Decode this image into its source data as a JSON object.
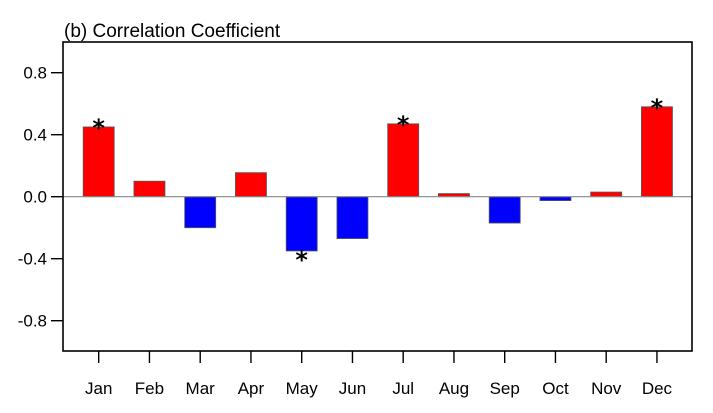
{
  "chart_data": {
    "type": "bar",
    "title": "(b) Correlation Coefficient",
    "xlabel": "",
    "ylabel": "",
    "categories": [
      "Jan",
      "Feb",
      "Mar",
      "Apr",
      "May",
      "Jun",
      "Jul",
      "Aug",
      "Sep",
      "Oct",
      "Nov",
      "Dec"
    ],
    "values": [
      0.45,
      0.1,
      -0.2,
      0.155,
      -0.35,
      -0.27,
      0.47,
      0.02,
      -0.17,
      -0.025,
      0.03,
      0.58
    ],
    "significant": [
      true,
      false,
      false,
      false,
      true,
      false,
      true,
      false,
      false,
      false,
      false,
      true
    ],
    "significance_marker": "*",
    "ylim": [
      -1.0,
      1.0
    ],
    "yticks": [
      0.8,
      0.4,
      0.0,
      -0.4,
      -0.8
    ],
    "ytick_labels": [
      "0.8",
      "0.4",
      "0.0",
      "-0.4",
      "-0.8"
    ],
    "grid": false,
    "zero_line": true,
    "colors": {
      "positive": "#ff0000",
      "negative": "#0000ff",
      "bar_edge": "#555555",
      "axis": "#000000",
      "zero_line": "#888888"
    }
  }
}
